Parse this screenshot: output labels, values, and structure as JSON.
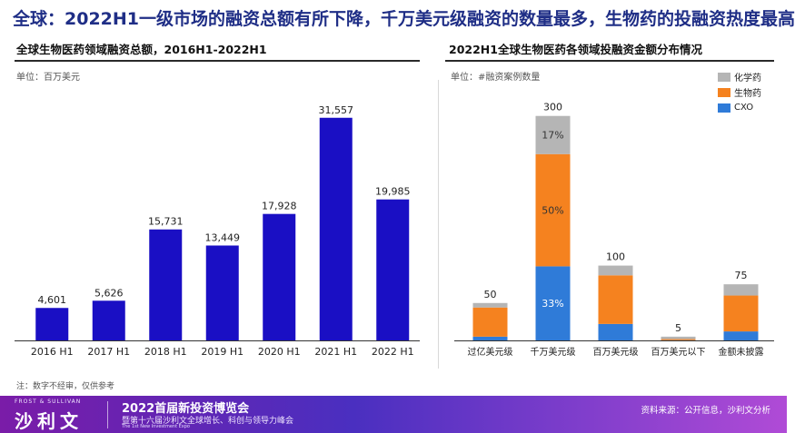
{
  "headline": "全球：2022H1一级市场的融资总额有所下降，千万美元级融资的数量最多，生物药的投融资热度最高",
  "note": "注：数字不经审，仅供参考",
  "footer": {
    "brand_small": "FROST & SULLIVAN",
    "brand": "沙利文",
    "expo_title": "2022首届新投资博览会",
    "expo_sub": "暨第十六届沙利文全球增长、科创与领导力峰会",
    "expo_en": "The 1st New Investment Expo",
    "source": "资料来源：公开信息，沙利文分析"
  },
  "colors": {
    "bar_blue": "#1a0fc4",
    "chem": "#b5b5b5",
    "bio": "#f5821f",
    "cxo": "#2f7bd8"
  },
  "chart_data": [
    {
      "type": "bar",
      "title": "全球生物医药领域融资总额，2016H1-2022H1",
      "unit_label": "单位：百万美元",
      "categories": [
        "2016 H1",
        "2017 H1",
        "2018 H1",
        "2019 H1",
        "2020 H1",
        "2021 H1",
        "2022 H1"
      ],
      "values": [
        4601,
        5626,
        15731,
        13449,
        17928,
        31557,
        19985
      ],
      "value_labels": [
        "4,601",
        "5,626",
        "15,731",
        "13,449",
        "17,928",
        "31,557",
        "19,985"
      ],
      "ylim": [
        0,
        35000
      ],
      "grid": false
    },
    {
      "type": "bar",
      "stacked": true,
      "title": "2022H1全球生物医药各领域投融资金额分布情况",
      "unit_label": "单位：#融资案例数量",
      "categories": [
        "过亿美元级",
        "千万美元级",
        "百万美元级",
        "百万美元以下",
        "金额未披露"
      ],
      "totals": [
        50,
        300,
        100,
        5,
        75
      ],
      "series": [
        {
          "name": "CXO",
          "values": [
            5,
            99,
            22,
            0.3,
            12
          ]
        },
        {
          "name": "生物药",
          "values": [
            39,
            150,
            65,
            1.5,
            48
          ]
        },
        {
          "name": "化学药",
          "values": [
            6,
            51,
            13,
            3.2,
            15
          ]
        }
      ],
      "segment_labels": [
        {
          "category": 1,
          "series": 0,
          "text": "33%"
        },
        {
          "category": 1,
          "series": 1,
          "text": "50%"
        },
        {
          "category": 1,
          "series": 2,
          "text": "17%"
        }
      ],
      "legend": [
        "化学药",
        "生物药",
        "CXO"
      ],
      "legend_position": "top-right",
      "ylim": [
        0,
        330
      ],
      "grid": false
    }
  ]
}
